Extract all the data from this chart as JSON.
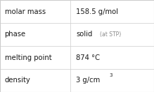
{
  "rows": [
    {
      "label": "molar mass",
      "value": "158.5 g/mol",
      "value_extra": null,
      "value_super": null
    },
    {
      "label": "phase",
      "value": "solid",
      "value_extra": "(at STP)",
      "value_super": null
    },
    {
      "label": "melting point",
      "value": "874 °C",
      "value_extra": null,
      "value_super": null
    },
    {
      "label": "density",
      "value": "3 g/cm",
      "value_extra": null,
      "value_super": "3"
    }
  ],
  "background_color": "#ffffff",
  "border_color": "#cccccc",
  "text_color": "#1a1a1a",
  "extra_color": "#888888",
  "label_fontsize": 7.2,
  "value_fontsize": 7.2,
  "extra_fontsize": 5.5,
  "super_fontsize": 5.0,
  "col_split": 0.455
}
